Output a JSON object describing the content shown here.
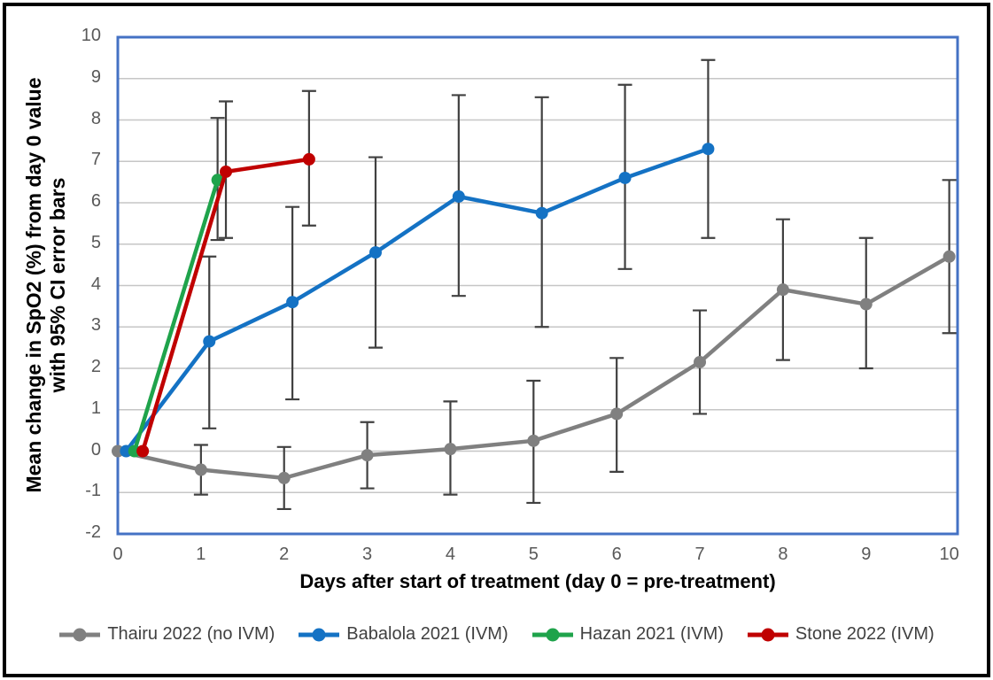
{
  "chart_data": {
    "type": "line",
    "title": "",
    "ylabel_line1": "Mean change in SpO2 (%) from day 0 value",
    "ylabel_line2": "with 95% CI error bars",
    "xlabel": "Days after start of treatment (day 0 = pre-treatment)",
    "xlim": [
      0,
      10.1
    ],
    "ylim": [
      -2,
      10
    ],
    "x_ticks": [
      0,
      1,
      2,
      3,
      4,
      5,
      6,
      7,
      8,
      9,
      10
    ],
    "y_ticks": [
      -2,
      -1,
      0,
      1,
      2,
      3,
      4,
      5,
      6,
      7,
      8,
      9,
      10
    ],
    "grid": "horizontal-only",
    "legend_position": "bottom",
    "error_bars": "95% CI",
    "colors": {
      "plot_border": "#4472c4",
      "gridline": "#c6c6c6",
      "error_bar": "#404040",
      "axis_text": "#595959",
      "title_text": "#000000",
      "legend_text": "#404040"
    },
    "series": [
      {
        "name": "Thairu 2022 (no IVM)",
        "color": "#808080",
        "x": [
          0,
          1,
          2,
          3,
          4,
          5,
          6,
          7,
          8,
          9,
          10
        ],
        "y": [
          0,
          -0.45,
          -0.65,
          -0.1,
          0.05,
          0.25,
          0.9,
          2.15,
          3.9,
          3.55,
          4.7
        ],
        "ci_low": [
          null,
          -1.05,
          -1.4,
          -0.9,
          -1.05,
          -1.25,
          -0.5,
          0.9,
          2.2,
          2.0,
          2.85
        ],
        "ci_high": [
          null,
          0.15,
          0.1,
          0.7,
          1.2,
          1.7,
          2.25,
          3.4,
          5.6,
          5.15,
          6.55
        ]
      },
      {
        "name": "Babalola 2021 (IVM)",
        "color": "#1472c4",
        "x": [
          0.1,
          1.1,
          2.1,
          3.1,
          4.1,
          5.1,
          6.1,
          7.1
        ],
        "y": [
          0,
          2.65,
          3.6,
          4.8,
          6.15,
          5.75,
          6.6,
          7.3
        ],
        "ci_low": [
          null,
          0.55,
          1.25,
          2.5,
          3.75,
          3.0,
          4.4,
          5.15
        ],
        "ci_high": [
          null,
          4.7,
          5.9,
          7.1,
          8.6,
          8.55,
          8.85,
          9.45
        ]
      },
      {
        "name": "Hazan 2021 (IVM)",
        "color": "#1fa34b",
        "x": [
          0.2,
          1.2
        ],
        "y": [
          0,
          6.55
        ],
        "ci_low": [
          null,
          5.1
        ],
        "ci_high": [
          null,
          8.05
        ]
      },
      {
        "name": "Stone 2022 (IVM)",
        "color": "#c00000",
        "x": [
          0.3,
          1.3,
          2.3
        ],
        "y": [
          0,
          6.75,
          7.05
        ],
        "ci_low": [
          null,
          5.15,
          5.45
        ],
        "ci_high": [
          null,
          8.45,
          8.7
        ]
      }
    ]
  }
}
